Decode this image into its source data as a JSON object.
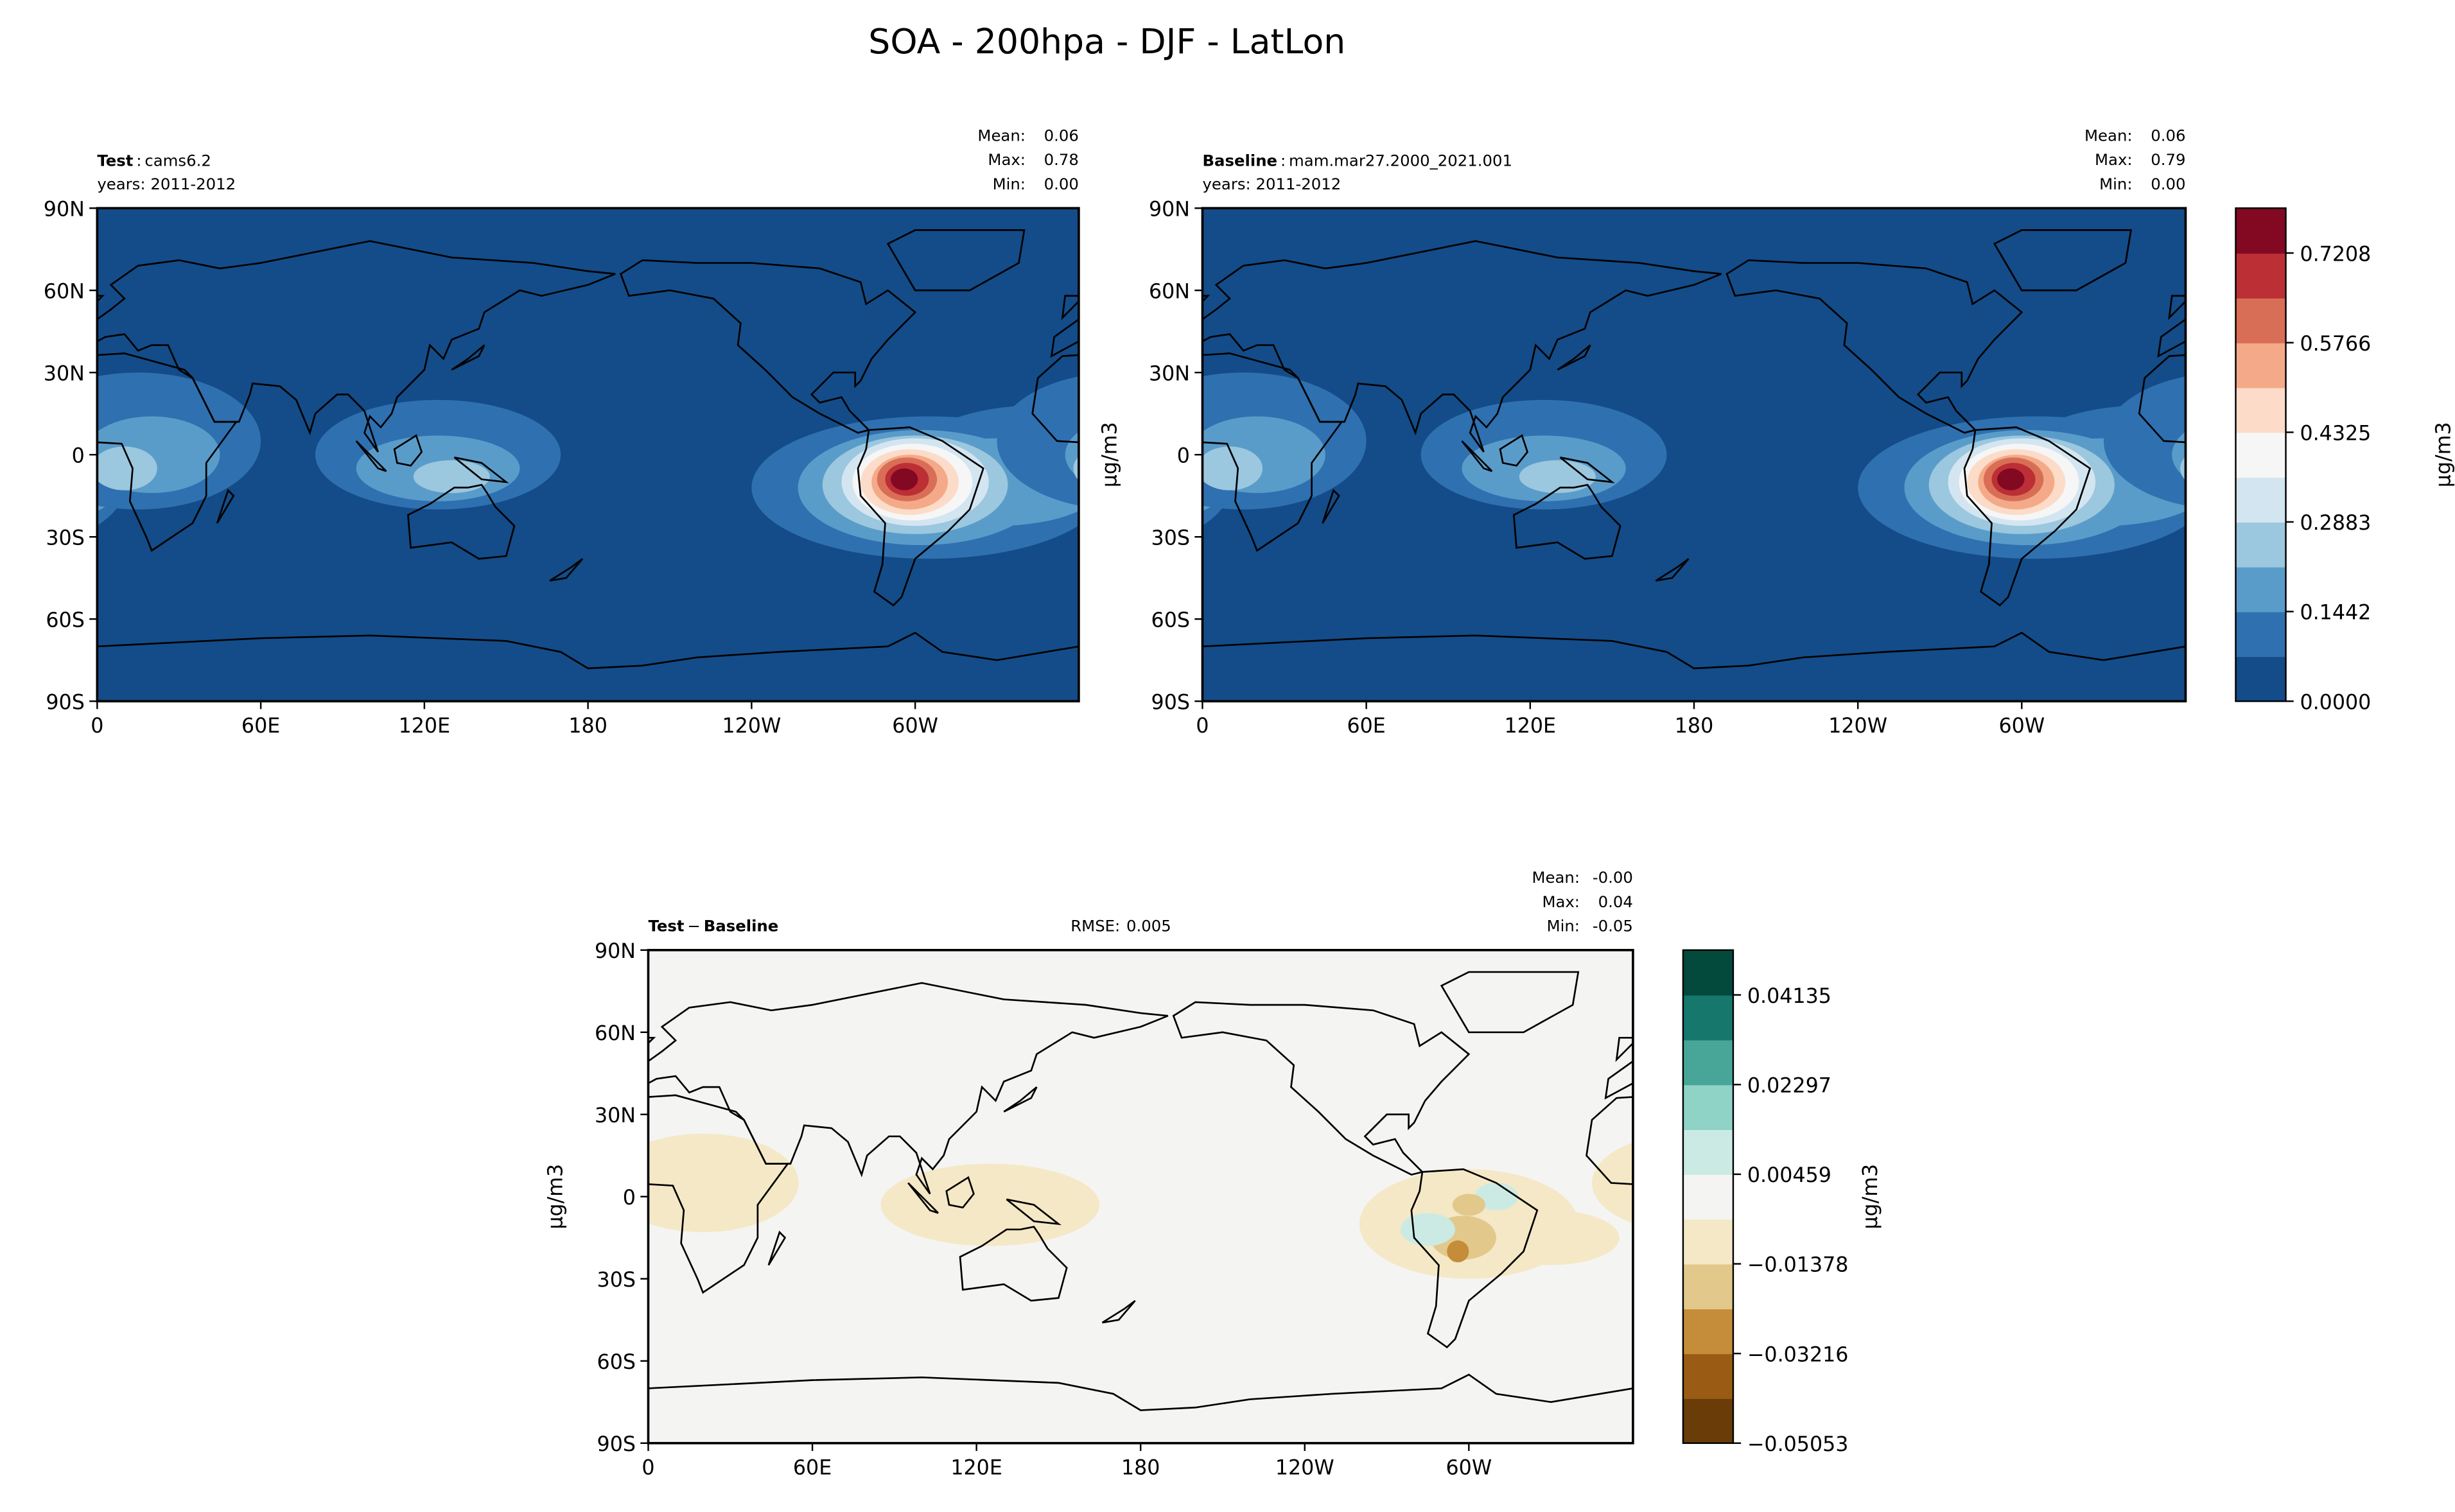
{
  "title": "SOA - 200hpa - DJF - LatLon",
  "chart_data": [
    {
      "type": "contour-map",
      "header": [
        {
          "text": "Test",
          "bold": true
        },
        {
          "text": ":"
        },
        {
          "text": "cams6.2"
        }
      ],
      "years": "years: 2011-2012",
      "stats": [
        {
          "name": "Mean:",
          "value": 0.06
        },
        {
          "name": "Max:",
          "value": 0.78
        },
        {
          "name": "Min:",
          "value": 0,
          "label": "0.00"
        }
      ],
      "xlim": [
        0,
        360
      ],
      "ylim": [
        -90,
        90
      ],
      "xticks": [
        0,
        {
          "value": 60,
          "label": "60E"
        },
        {
          "value": 120,
          "label": "120E"
        },
        180,
        {
          "value": 240,
          "label": "120W"
        },
        {
          "value": 300,
          "label": "60W"
        }
      ],
      "yticks": [
        {
          "value": -90,
          "label": "90S"
        },
        {
          "value": -60,
          "label": "60S"
        },
        {
          "value": -30,
          "label": "30S"
        },
        0,
        {
          "value": 30,
          "label": "30N"
        },
        {
          "value": 60,
          "label": "60N"
        },
        {
          "value": 90,
          "label": "90N"
        }
      ]
    },
    {
      "type": "contour-map",
      "header": [
        {
          "text": "Baseline",
          "bold": true
        },
        {
          "text": ":"
        },
        {
          "text": "mam.mar27.2000_2021.001"
        }
      ],
      "years": "years: 2011-2012",
      "stats": [
        {
          "name": "Mean:",
          "value": 0.06
        },
        {
          "name": "Max:",
          "value": 0.79
        },
        {
          "name": "Min:",
          "value": 0,
          "label": "0.00"
        }
      ],
      "ylabel": "μg/m3",
      "xlim": [
        0,
        360
      ],
      "ylim": [
        -90,
        90
      ],
      "xticks": [
        0,
        {
          "value": 60,
          "label": "60E"
        },
        {
          "value": 120,
          "label": "120E"
        },
        180,
        {
          "value": 240,
          "label": "120W"
        },
        {
          "value": 300,
          "label": "60W"
        }
      ],
      "yticks": [
        {
          "value": -90,
          "label": "90S"
        },
        {
          "value": -60,
          "label": "60S"
        },
        {
          "value": -30,
          "label": "30S"
        },
        0,
        {
          "value": 30,
          "label": "30N"
        },
        {
          "value": 60,
          "label": "60N"
        },
        {
          "value": 90,
          "label": "90N"
        }
      ],
      "colorbar": {
        "label": "μg/m3",
        "levels": [
          0,
          0.0721,
          0.1442,
          0.2162,
          0.2883,
          0.3604,
          0.4325,
          0.5045,
          0.5766,
          0.6487,
          0.7208,
          0.7929
        ],
        "colors": [
          "#134c88",
          "#2f70b0",
          "#5a9cc9",
          "#9bc7df",
          "#d3e5f0",
          "#f6f6f6",
          "#fcdcc9",
          "#f4aa88",
          "#d96e57",
          "#bb2f35",
          "#830923"
        ],
        "ticks": [
          {
            "value": 0,
            "label": "0.0000"
          },
          0.1442,
          0.2883,
          0.4325,
          0.5766,
          0.7208
        ]
      }
    },
    {
      "type": "contour-map",
      "header": [
        {
          "text": "Test",
          "bold": true
        },
        {
          "text": "−"
        },
        {
          "text": "Baseline",
          "bold": true
        }
      ],
      "rmse": {
        "name": "RMSE:",
        "value": 0.005
      },
      "stats": [
        {
          "name": "Mean:",
          "value": 0,
          "label": "-0.00"
        },
        {
          "name": "Max:",
          "value": 0.04
        },
        {
          "name": "Min:",
          "value": -0.05
        }
      ],
      "ylabel": "μg/m3",
      "xlim": [
        0,
        360
      ],
      "ylim": [
        -90,
        90
      ],
      "xticks": [
        0,
        {
          "value": 60,
          "label": "60E"
        },
        {
          "value": 120,
          "label": "120E"
        },
        180,
        {
          "value": 240,
          "label": "120W"
        },
        {
          "value": 300,
          "label": "60W"
        }
      ],
      "yticks": [
        {
          "value": -90,
          "label": "90S"
        },
        {
          "value": -60,
          "label": "60S"
        },
        {
          "value": -30,
          "label": "30S"
        },
        0,
        {
          "value": 30,
          "label": "30N"
        },
        {
          "value": 60,
          "label": "60N"
        },
        {
          "value": 90,
          "label": "90N"
        }
      ],
      "colorbar": {
        "label": "μg/m3",
        "levels": [
          -0.05053,
          -0.04134,
          -0.03216,
          -0.02297,
          -0.01378,
          -0.00459,
          0.00459,
          0.01378,
          0.02297,
          0.03216,
          0.04135,
          0.05054
        ],
        "colors": [
          "#6a3d08",
          "#9a5c14",
          "#c58c3a",
          "#e2c88b",
          "#f4e8c6",
          "#f4f4f3",
          "#cbeae4",
          "#8fd2c6",
          "#48a699",
          "#16776c",
          "#034a3d"
        ],
        "ticks": [
          {
            "value": -0.05053,
            "label": "−0.05053"
          },
          {
            "value": -0.03216,
            "label": "−0.03216"
          },
          {
            "value": -0.01378,
            "label": "−0.01378"
          },
          0.00459,
          0.02297,
          0.04135
        ]
      }
    }
  ]
}
